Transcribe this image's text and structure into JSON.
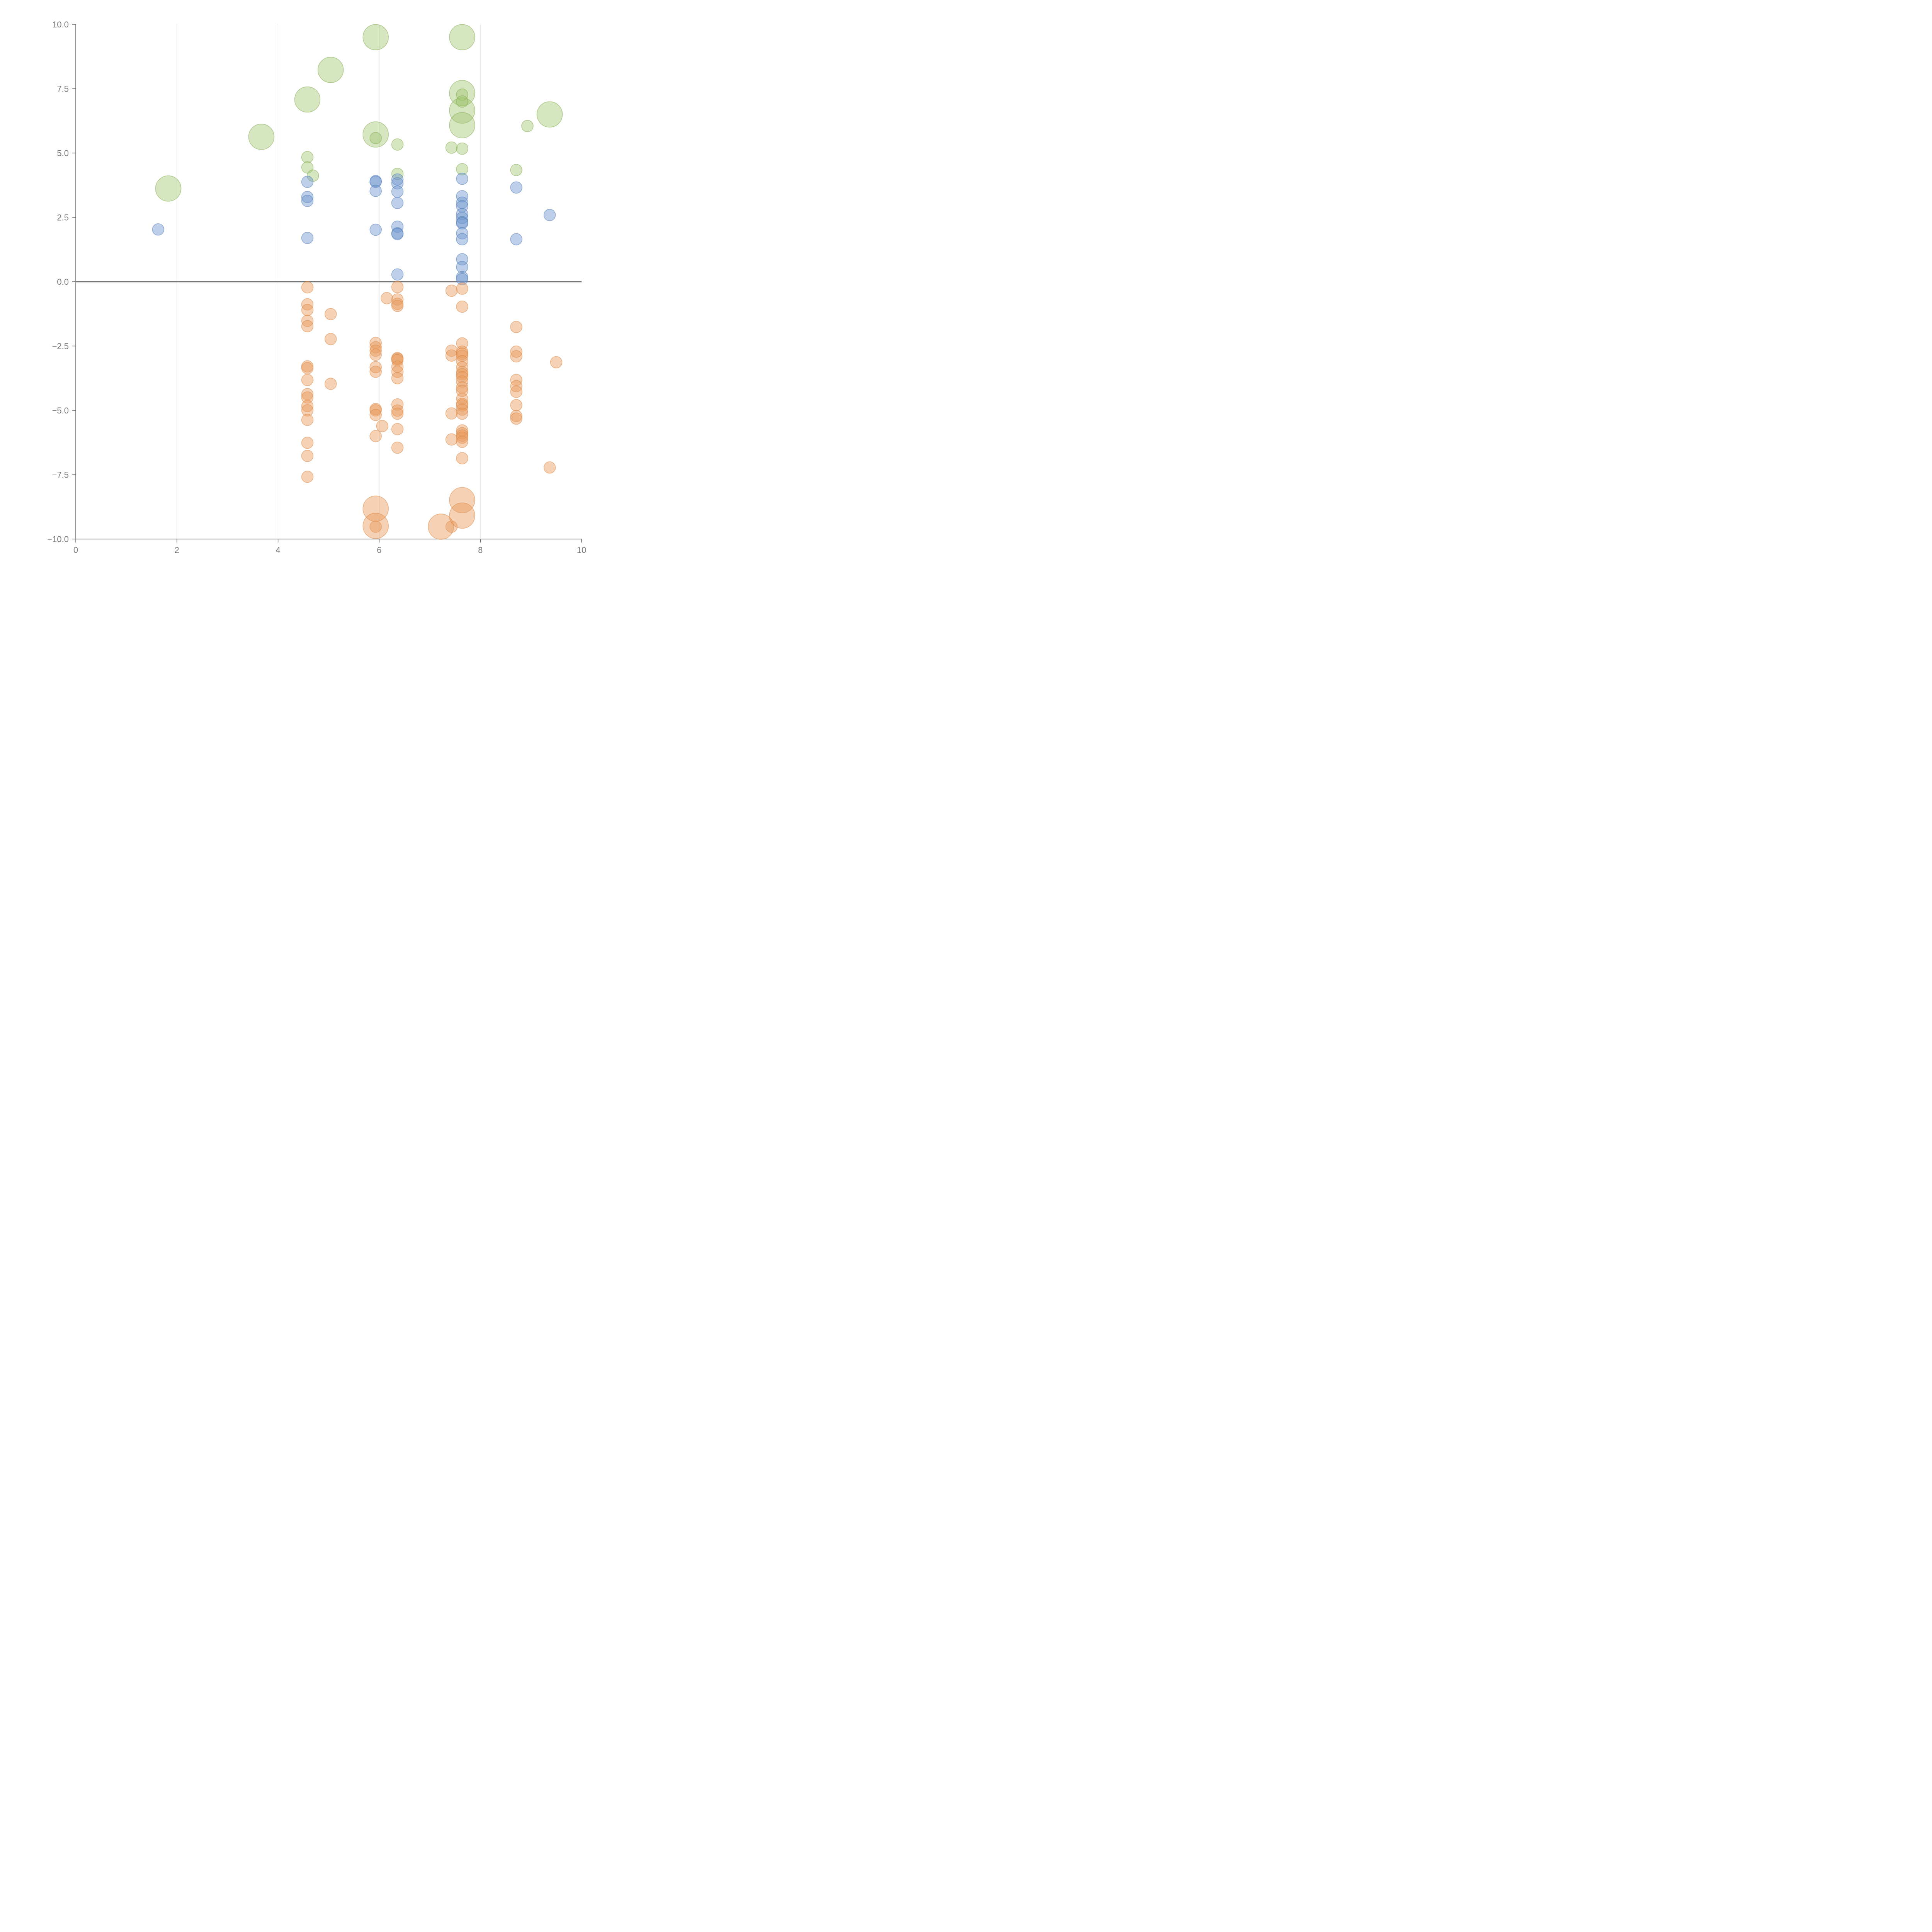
{
  "chart_data": {
    "type": "scatter",
    "title": "",
    "xlabel": "",
    "ylabel": "",
    "xlim": [
      0,
      10
    ],
    "ylim": [
      -10,
      10
    ],
    "x_ticks": [
      "0",
      "2",
      "4",
      "6",
      "8",
      "10"
    ],
    "y_ticks": [
      "10.0",
      "7.5",
      "5.0",
      "2.5",
      "0.0",
      "−2.5",
      "−5.0",
      "−7.5",
      "−10.0"
    ],
    "grid": "vertical",
    "colors": {
      "green": "#9dc36b",
      "green_stroke": "#7fa84d",
      "blue": "#6f97cf",
      "blue_stroke": "#4f78b5",
      "orange": "#e89a5a",
      "orange_stroke": "#d9853f",
      "axis": "#666666",
      "grid": "#dddddd",
      "label": "#777777"
    },
    "series": [
      {
        "name": "green",
        "color_key": "green",
        "points": [
          [
            1.83,
            3.62,
            2.2
          ],
          [
            3.67,
            5.63,
            2.2
          ],
          [
            4.58,
            7.08,
            2.2
          ],
          [
            5.04,
            8.23,
            2.2
          ],
          [
            5.93,
            9.5,
            2.2
          ],
          [
            5.93,
            5.72,
            2.2
          ],
          [
            7.64,
            9.5,
            2.2
          ],
          [
            7.64,
            7.33,
            2.2
          ],
          [
            7.64,
            6.65,
            2.2
          ],
          [
            7.64,
            6.08,
            2.2
          ],
          [
            9.37,
            6.5,
            2.2
          ],
          [
            4.58,
            4.84,
            1.0
          ],
          [
            4.58,
            4.44,
            1.0
          ],
          [
            4.69,
            4.12,
            1.0
          ],
          [
            5.93,
            5.58,
            1.0
          ],
          [
            6.36,
            5.33,
            1.0
          ],
          [
            6.36,
            4.19,
            1.0
          ],
          [
            7.43,
            5.21,
            1.0
          ],
          [
            7.64,
            5.17,
            1.0
          ],
          [
            7.64,
            4.37,
            1.0
          ],
          [
            7.64,
            7.27,
            1.0
          ],
          [
            7.64,
            7.0,
            1.0
          ],
          [
            8.71,
            4.34,
            1.0
          ],
          [
            8.93,
            6.05,
            1.0
          ]
        ]
      },
      {
        "name": "blue",
        "color_key": "blue",
        "points": [
          [
            1.63,
            2.03,
            1.0
          ],
          [
            4.58,
            3.88,
            1.0
          ],
          [
            4.58,
            3.29,
            1.0
          ],
          [
            4.58,
            3.14,
            1.0
          ],
          [
            4.58,
            1.7,
            1.0
          ],
          [
            5.93,
            3.91,
            1.0
          ],
          [
            5.93,
            3.88,
            1.0
          ],
          [
            5.93,
            3.53,
            1.0
          ],
          [
            5.93,
            2.02,
            1.0
          ],
          [
            6.36,
            3.97,
            1.0
          ],
          [
            6.36,
            3.82,
            1.0
          ],
          [
            6.36,
            3.5,
            1.0
          ],
          [
            6.36,
            3.06,
            1.0
          ],
          [
            6.36,
            2.14,
            1.0
          ],
          [
            6.36,
            1.88,
            1.0
          ],
          [
            6.36,
            1.85,
            1.0
          ],
          [
            6.36,
            0.28,
            1.0
          ],
          [
            7.64,
            4.0,
            1.0
          ],
          [
            7.64,
            3.32,
            1.0
          ],
          [
            7.64,
            3.07,
            1.0
          ],
          [
            7.64,
            2.93,
            1.0
          ],
          [
            7.64,
            2.63,
            1.0
          ],
          [
            7.64,
            2.48,
            1.0
          ],
          [
            7.64,
            2.31,
            1.0
          ],
          [
            7.64,
            2.27,
            1.0
          ],
          [
            7.64,
            1.88,
            1.0
          ],
          [
            7.64,
            1.65,
            1.0
          ],
          [
            7.64,
            0.87,
            1.0
          ],
          [
            7.64,
            0.57,
            1.0
          ],
          [
            7.64,
            0.18,
            1.0
          ],
          [
            7.64,
            0.1,
            1.0
          ],
          [
            8.71,
            3.66,
            1.0
          ],
          [
            8.71,
            1.65,
            1.0
          ],
          [
            9.37,
            2.59,
            1.0
          ]
        ]
      },
      {
        "name": "orange",
        "color_key": "orange",
        "points": [
          [
            4.58,
            -0.22,
            1.0
          ],
          [
            4.58,
            -0.88,
            1.0
          ],
          [
            4.58,
            -1.1,
            1.0
          ],
          [
            4.58,
            -1.52,
            1.0
          ],
          [
            4.58,
            -1.73,
            1.0
          ],
          [
            4.58,
            -3.29,
            1.0
          ],
          [
            4.58,
            -3.36,
            1.0
          ],
          [
            4.58,
            -3.82,
            1.0
          ],
          [
            4.58,
            -4.37,
            1.0
          ],
          [
            4.58,
            -4.5,
            1.0
          ],
          [
            4.58,
            -4.83,
            1.0
          ],
          [
            4.58,
            -5.0,
            1.0
          ],
          [
            4.58,
            -5.37,
            1.0
          ],
          [
            4.58,
            -6.26,
            1.0
          ],
          [
            4.58,
            -6.77,
            1.0
          ],
          [
            4.58,
            -7.58,
            1.0
          ],
          [
            5.04,
            -1.26,
            1.0
          ],
          [
            5.04,
            -2.23,
            1.0
          ],
          [
            5.04,
            -3.97,
            1.0
          ],
          [
            5.93,
            -2.38,
            1.0
          ],
          [
            5.93,
            -2.55,
            1.0
          ],
          [
            5.93,
            -2.68,
            1.0
          ],
          [
            5.93,
            -2.84,
            1.0
          ],
          [
            5.93,
            -3.32,
            1.0
          ],
          [
            5.93,
            -3.5,
            1.0
          ],
          [
            5.93,
            -4.95,
            1.0
          ],
          [
            5.93,
            -5.0,
            1.0
          ],
          [
            5.93,
            -5.18,
            1.0
          ],
          [
            5.93,
            -6.0,
            1.0
          ],
          [
            5.93,
            -9.52,
            1.0
          ],
          [
            6.06,
            -5.61,
            1.0
          ],
          [
            6.15,
            -0.64,
            1.0
          ],
          [
            6.36,
            -0.21,
            1.0
          ],
          [
            6.36,
            -0.69,
            1.0
          ],
          [
            6.36,
            -0.86,
            1.0
          ],
          [
            6.36,
            -0.94,
            1.0
          ],
          [
            6.36,
            -2.97,
            1.0
          ],
          [
            6.36,
            -3.0,
            1.0
          ],
          [
            6.36,
            -3.05,
            1.0
          ],
          [
            6.36,
            -3.3,
            1.0
          ],
          [
            6.36,
            -3.5,
            1.0
          ],
          [
            6.36,
            -3.75,
            1.0
          ],
          [
            6.36,
            -4.77,
            1.0
          ],
          [
            6.36,
            -5.01,
            1.0
          ],
          [
            6.36,
            -5.13,
            1.0
          ],
          [
            6.36,
            -5.73,
            1.0
          ],
          [
            6.36,
            -6.45,
            1.0
          ],
          [
            7.43,
            -0.35,
            1.0
          ],
          [
            7.43,
            -2.68,
            1.0
          ],
          [
            7.43,
            -2.87,
            1.0
          ],
          [
            7.43,
            -5.12,
            1.0
          ],
          [
            7.43,
            -6.13,
            1.0
          ],
          [
            7.43,
            -9.52,
            1.0
          ],
          [
            7.64,
            -0.27,
            1.0
          ],
          [
            7.64,
            -0.97,
            1.0
          ],
          [
            7.64,
            -2.4,
            1.0
          ],
          [
            7.64,
            -2.72,
            1.0
          ],
          [
            7.64,
            -2.8,
            1.0
          ],
          [
            7.64,
            -2.88,
            1.0
          ],
          [
            7.64,
            -3.09,
            1.0
          ],
          [
            7.64,
            -3.33,
            1.0
          ],
          [
            7.64,
            -3.52,
            1.0
          ],
          [
            7.64,
            -3.6,
            1.0
          ],
          [
            7.64,
            -3.71,
            1.0
          ],
          [
            7.64,
            -3.88,
            1.0
          ],
          [
            7.64,
            -4.11,
            1.0
          ],
          [
            7.64,
            -4.24,
            1.0
          ],
          [
            7.64,
            -4.55,
            1.0
          ],
          [
            7.64,
            -4.75,
            1.0
          ],
          [
            7.64,
            -4.81,
            1.0
          ],
          [
            7.64,
            -4.97,
            1.0
          ],
          [
            7.64,
            -5.13,
            1.0
          ],
          [
            7.64,
            -5.78,
            1.0
          ],
          [
            7.64,
            -5.89,
            1.0
          ],
          [
            7.64,
            -5.98,
            1.0
          ],
          [
            7.64,
            -6.06,
            1.0
          ],
          [
            7.64,
            -6.22,
            1.0
          ],
          [
            7.64,
            -6.86,
            1.0
          ],
          [
            8.71,
            -1.76,
            1.0
          ],
          [
            8.71,
            -2.72,
            1.0
          ],
          [
            8.71,
            -2.9,
            1.0
          ],
          [
            8.71,
            -3.82,
            1.0
          ],
          [
            8.71,
            -4.06,
            1.0
          ],
          [
            8.71,
            -4.28,
            1.0
          ],
          [
            8.71,
            -4.8,
            1.0
          ],
          [
            8.71,
            -5.22,
            1.0
          ],
          [
            8.71,
            -5.32,
            1.0
          ],
          [
            9.37,
            -7.22,
            1.0
          ],
          [
            9.5,
            -3.13,
            1.0
          ],
          [
            5.93,
            -8.82,
            2.2
          ],
          [
            5.93,
            -9.49,
            2.2
          ],
          [
            7.22,
            -9.52,
            2.2
          ],
          [
            7.64,
            -8.49,
            2.2
          ],
          [
            7.64,
            -9.09,
            2.2
          ]
        ]
      }
    ]
  }
}
